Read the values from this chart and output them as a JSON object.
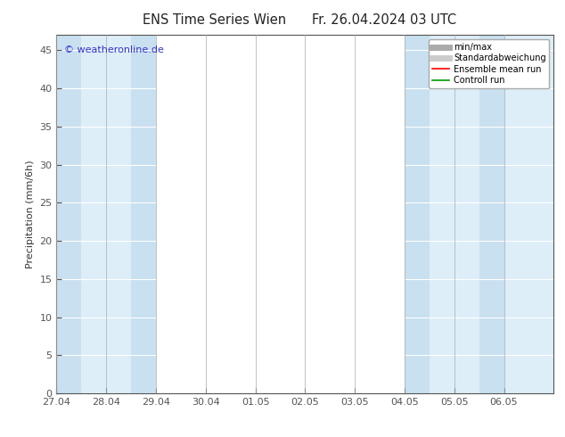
{
  "title_left": "ENS Time Series Wien",
  "title_right": "Fr. 26.04.2024 03 UTC",
  "ylabel": "Precipitation (mm/6h)",
  "watermark": "© weatheronline.de",
  "watermark_color": "#3333cc",
  "xlim_left": 0,
  "xlim_right": 40,
  "ylim": [
    0,
    47
  ],
  "yticks": [
    0,
    5,
    10,
    15,
    20,
    25,
    30,
    35,
    40,
    45
  ],
  "xtick_labels": [
    "27.04",
    "28.04",
    "29.04",
    "30.04",
    "01.05",
    "02.05",
    "03.05",
    "04.05",
    "05.05",
    "06.05"
  ],
  "xtick_positions": [
    0,
    4,
    8,
    12,
    16,
    20,
    24,
    28,
    32,
    36
  ],
  "blue_bands": [
    {
      "x_start": 0,
      "x_end": 4,
      "color": "#ddeef8"
    },
    {
      "x_start": 4,
      "x_end": 8,
      "color": "#ddeef8"
    },
    {
      "x_start": 28,
      "x_end": 32,
      "color": "#ddeef8"
    },
    {
      "x_start": 32,
      "x_end": 36,
      "color": "#ddeef8"
    },
    {
      "x_start": 36,
      "x_end": 40,
      "color": "#ddeef8"
    }
  ],
  "darker_bands": [
    {
      "x_start": 0,
      "x_end": 2,
      "color": "#c8e0f0"
    },
    {
      "x_start": 6,
      "x_end": 8,
      "color": "#c8e0f0"
    },
    {
      "x_start": 28,
      "x_end": 30,
      "color": "#c8e0f0"
    },
    {
      "x_start": 34,
      "x_end": 36,
      "color": "#c8e0f0"
    }
  ],
  "legend_items": [
    {
      "label": "min/max",
      "color": "#aaaaaa",
      "linewidth": 5,
      "linestyle": "-"
    },
    {
      "label": "Standardabweichung",
      "color": "#cccccc",
      "linewidth": 5,
      "linestyle": "-"
    },
    {
      "label": "Ensemble mean run",
      "color": "#ff0000",
      "linewidth": 1.2,
      "linestyle": "-"
    },
    {
      "label": "Controll run",
      "color": "#009900",
      "linewidth": 1.2,
      "linestyle": "-"
    }
  ],
  "background_color": "#ffffff",
  "plot_bg_color": "#ffffff",
  "spine_color": "#555555",
  "tick_color": "#555555",
  "grid_color": "#ffffff",
  "tick_label_fontsize": 8,
  "ylabel_fontsize": 8,
  "title_fontsize": 10.5
}
